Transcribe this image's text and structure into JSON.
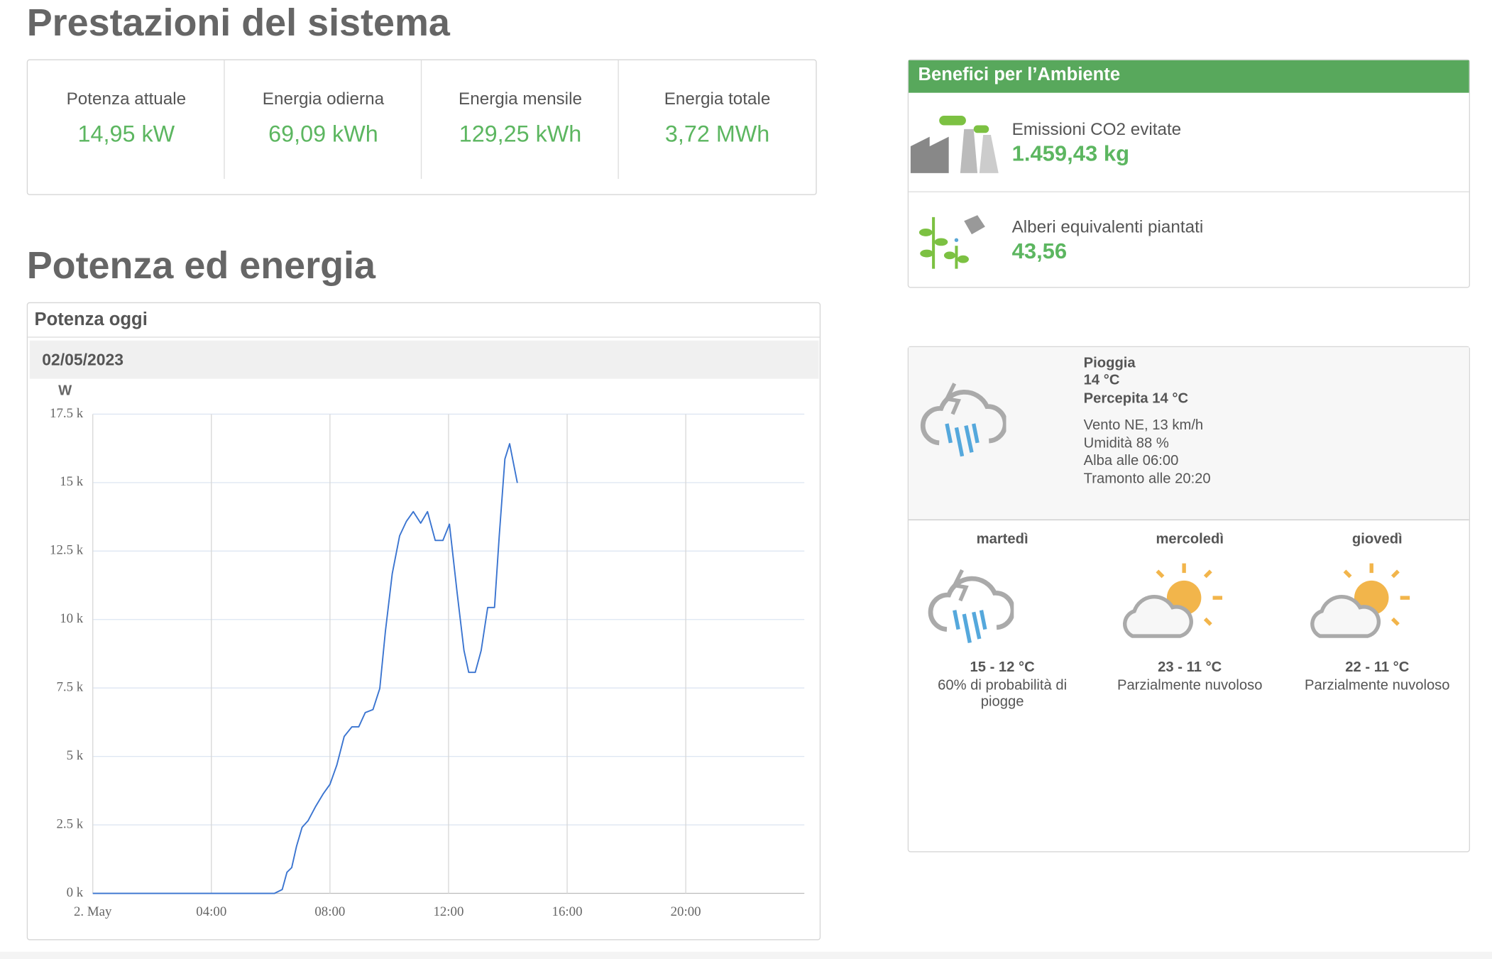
{
  "performance": {
    "title": "Prestazioni del sistema",
    "stats": [
      {
        "label": "Potenza attuale",
        "value": "14,95 kW"
      },
      {
        "label": "Energia odierna",
        "value": "69,09 kWh"
      },
      {
        "label": "Energia mensile",
        "value": "129,25 kWh"
      },
      {
        "label": "Energia totale",
        "value": "3,72 MWh"
      }
    ]
  },
  "section_title": "Potenza ed energia",
  "chart_data": {
    "type": "line",
    "panel_title": "Potenza oggi",
    "title": "02/05/2023",
    "y_label": "W",
    "x": [
      0,
      6.13,
      6.39,
      6.55,
      6.71,
      6.87,
      7.06,
      7.26,
      7.52,
      7.77,
      8.0,
      8.23,
      8.48,
      8.74,
      8.97,
      9.19,
      9.45,
      9.68,
      9.87,
      10.1,
      10.35,
      10.58,
      10.81,
      11.06,
      11.29,
      11.55,
      11.81,
      12.03,
      12.29,
      12.52,
      12.68,
      12.9,
      13.1,
      13.32,
      13.55,
      13.71,
      13.9,
      14.06,
      14.32
    ],
    "values": [
      0,
      0,
      140,
      770,
      940,
      1710,
      2410,
      2650,
      3180,
      3630,
      3980,
      4680,
      5730,
      6080,
      6080,
      6600,
      6710,
      7480,
      9570,
      11670,
      13060,
      13590,
      13940,
      13520,
      13940,
      12890,
      12890,
      13480,
      10970,
      8870,
      8070,
      8070,
      8870,
      10440,
      10440,
      13060,
      15860,
      16420,
      14990
    ],
    "color": "#3a74d0",
    "xlim": [
      0,
      24
    ],
    "xticks": [
      {
        "value": 0,
        "label": "2. May"
      },
      {
        "value": 4,
        "label": "04:00"
      },
      {
        "value": 8,
        "label": "08:00"
      },
      {
        "value": 12,
        "label": "12:00"
      },
      {
        "value": 16,
        "label": "16:00"
      },
      {
        "value": 20,
        "label": "20:00"
      }
    ],
    "ylim": [
      0,
      17500
    ],
    "yticks": [
      {
        "value": 0,
        "label": "0 k"
      },
      {
        "value": 2500,
        "label": "2.5 k"
      },
      {
        "value": 5000,
        "label": "5 k"
      },
      {
        "value": 7500,
        "label": "7.5 k"
      },
      {
        "value": 10000,
        "label": "10 k"
      },
      {
        "value": 12500,
        "label": "12.5 k"
      },
      {
        "value": 15000,
        "label": "15 k"
      },
      {
        "value": 17500,
        "label": "17.5 k"
      }
    ],
    "grid": true
  },
  "environment": {
    "title": "Benefici per l’Ambiente",
    "items": [
      {
        "label": "Emissioni CO2 evitate",
        "value": "1.459,43 kg"
      },
      {
        "label": "Alberi equivalenti piantati",
        "value": "43,56"
      }
    ]
  },
  "weather": {
    "current": {
      "condition": "Pioggia",
      "temperature": "14 °C",
      "feels_like": "Percepita 14 °C",
      "details": [
        "Vento NE, 13 km/h",
        "Umidità 88 %",
        "Alba alle 06:00",
        "Tramonto alle 20:20"
      ]
    },
    "forecast": [
      {
        "day": "martedì",
        "range": "15 - 12 °C",
        "description": "60% di probabilità di piogge"
      },
      {
        "day": "mercoledì",
        "range": "23 - 11 °C",
        "description": "Parzialmente nuvoloso"
      },
      {
        "day": "giovedì",
        "range": "22 - 11 °C",
        "description": "Parzialmente nuvoloso"
      }
    ]
  }
}
